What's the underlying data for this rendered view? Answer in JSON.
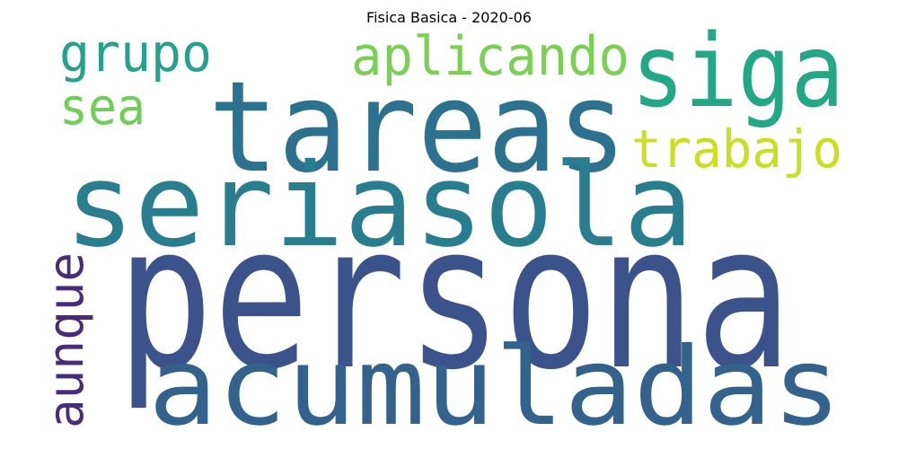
{
  "title": "Fisica Basica  - 2020-06",
  "words": [
    {
      "text": "persona",
      "color": "#3b528b"
    },
    {
      "text": "tareas",
      "color": "#2c728e"
    },
    {
      "text": "seriasola",
      "color": "#287d8e"
    },
    {
      "text": "acumuladas",
      "color": "#33638d"
    },
    {
      "text": "siga",
      "color": "#22a884"
    },
    {
      "text": "aplicando",
      "color": "#7ad151"
    },
    {
      "text": "grupo",
      "color": "#25a18e"
    },
    {
      "text": "sea",
      "color": "#6ece58"
    },
    {
      "text": "trabajo",
      "color": "#c8e020"
    },
    {
      "text": "aunque",
      "color": "#472c7a"
    }
  ]
}
